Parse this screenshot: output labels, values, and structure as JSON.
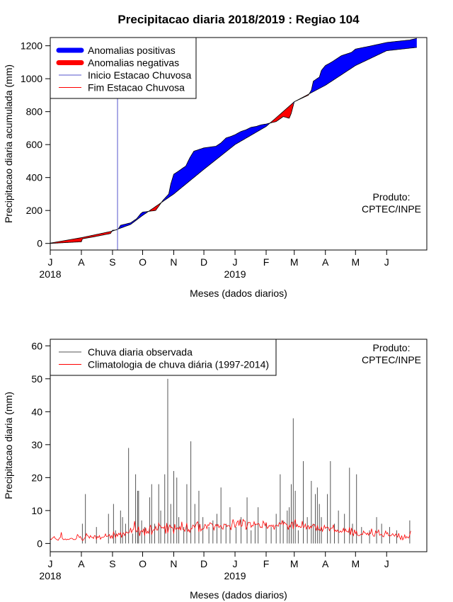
{
  "colors": {
    "positive": "#0000ff",
    "negative": "#ff0000",
    "start_line": "#5555cc",
    "end_line": "#ff0000",
    "observed": "#555555",
    "climatology": "#ff0000"
  },
  "chart_data": [
    {
      "type": "area",
      "title": "Precipitacao diaria 2018/2019 : Regiao 104",
      "xlabel": "Meses (dados diarios)",
      "ylabel": "Precipitacao diaria acumulada (mm)",
      "xlim": [
        0,
        375
      ],
      "ylim": [
        -40,
        1250
      ],
      "yticks": [
        0,
        200,
        400,
        600,
        800,
        1000,
        1200
      ],
      "months": [
        {
          "day": 0,
          "label": "J"
        },
        {
          "day": 31,
          "label": "A"
        },
        {
          "day": 62,
          "label": "S"
        },
        {
          "day": 92,
          "label": "O"
        },
        {
          "day": 123,
          "label": "N"
        },
        {
          "day": 153,
          "label": "D"
        },
        {
          "day": 184,
          "label": "J"
        },
        {
          "day": 215,
          "label": "F"
        },
        {
          "day": 243,
          "label": "M"
        },
        {
          "day": 274,
          "label": "A"
        },
        {
          "day": 304,
          "label": "M"
        },
        {
          "day": 335,
          "label": "J"
        }
      ],
      "years": [
        {
          "day": 0,
          "label": "2018"
        },
        {
          "day": 184,
          "label": "2019"
        }
      ],
      "start_season_day": 67,
      "end_season_day": 235,
      "climatology_x": [
        0,
        31,
        62,
        80,
        92,
        123,
        153,
        184,
        215,
        243,
        274,
        304,
        335,
        365
      ],
      "climatology_y": [
        2,
        35,
        75,
        115,
        170,
        300,
        450,
        600,
        710,
        860,
        960,
        1080,
        1170,
        1190
      ],
      "observed_x": [
        0,
        31,
        32,
        45,
        60,
        62,
        66,
        68,
        70,
        80,
        86,
        90,
        92,
        105,
        112,
        118,
        120,
        123,
        128,
        135,
        139,
        143,
        153,
        165,
        170,
        175,
        180,
        184,
        190,
        195,
        200,
        205,
        210,
        215,
        225,
        232,
        238,
        240,
        243,
        250,
        257,
        260,
        262,
        268,
        270,
        274,
        280,
        290,
        300,
        304,
        320,
        335,
        350,
        358,
        365
      ],
      "observed_y": [
        0,
        10,
        28,
        42,
        60,
        80,
        82,
        90,
        110,
        125,
        150,
        180,
        190,
        200,
        260,
        300,
        360,
        420,
        440,
        470,
        520,
        560,
        580,
        590,
        610,
        640,
        650,
        660,
        680,
        690,
        705,
        710,
        720,
        725,
        740,
        770,
        760,
        790,
        860,
        880,
        900,
        930,
        985,
        1010,
        1050,
        1080,
        1100,
        1140,
        1160,
        1180,
        1200,
        1220,
        1230,
        1235,
        1245
      ],
      "legend": {
        "position": "top-left",
        "items": [
          {
            "label": "Anomalias positivas",
            "color": "#0000ff",
            "style": "thick"
          },
          {
            "label": "Anomalias negativas",
            "color": "#ff0000",
            "style": "thick"
          },
          {
            "label": "Inicio Estacao Chuvosa",
            "color": "#5555cc",
            "style": "thin"
          },
          {
            "label": "Fim Estacao Chuvosa",
            "color": "#ff0000",
            "style": "thin"
          }
        ]
      },
      "annotation": [
        "Produto:",
        "CPTEC/INPE"
      ]
    },
    {
      "type": "bar",
      "title": "",
      "xlabel": "Meses (dados diarios)",
      "ylabel": "Precipitacao diaria (mm)",
      "xlim": [
        0,
        375
      ],
      "ylim": [
        -2.5,
        62
      ],
      "yticks": [
        0,
        10,
        20,
        30,
        40,
        50,
        60
      ],
      "months": [
        {
          "day": 0,
          "label": "J"
        },
        {
          "day": 31,
          "label": "A"
        },
        {
          "day": 62,
          "label": "S"
        },
        {
          "day": 92,
          "label": "O"
        },
        {
          "day": 123,
          "label": "N"
        },
        {
          "day": 153,
          "label": "D"
        },
        {
          "day": 184,
          "label": "J"
        },
        {
          "day": 215,
          "label": "F"
        },
        {
          "day": 243,
          "label": "M"
        },
        {
          "day": 274,
          "label": "A"
        },
        {
          "day": 304,
          "label": "M"
        },
        {
          "day": 335,
          "label": "J"
        }
      ],
      "years": [
        {
          "day": 0,
          "label": "2018"
        },
        {
          "day": 184,
          "label": "2019"
        }
      ],
      "rain_events": [
        [
          32,
          6
        ],
        [
          35,
          15
        ],
        [
          46,
          5
        ],
        [
          58,
          9
        ],
        [
          63,
          12
        ],
        [
          65,
          4
        ],
        [
          70,
          10
        ],
        [
          72,
          8
        ],
        [
          75,
          6
        ],
        [
          78,
          29
        ],
        [
          82,
          3
        ],
        [
          85,
          21
        ],
        [
          87,
          16
        ],
        [
          88,
          16
        ],
        [
          91,
          7
        ],
        [
          94,
          5
        ],
        [
          99,
          14
        ],
        [
          101,
          18
        ],
        [
          104,
          6
        ],
        [
          108,
          18
        ],
        [
          110,
          10
        ],
        [
          114,
          21
        ],
        [
          117,
          50
        ],
        [
          120,
          12
        ],
        [
          123,
          22
        ],
        [
          126,
          20
        ],
        [
          128,
          8
        ],
        [
          133,
          5
        ],
        [
          136,
          18
        ],
        [
          140,
          31
        ],
        [
          144,
          12
        ],
        [
          148,
          16
        ],
        [
          152,
          8
        ],
        [
          158,
          5
        ],
        [
          162,
          7
        ],
        [
          166,
          9
        ],
        [
          170,
          17
        ],
        [
          175,
          6
        ],
        [
          179,
          11
        ],
        [
          185,
          5
        ],
        [
          190,
          8
        ],
        [
          196,
          14
        ],
        [
          200,
          4
        ],
        [
          204,
          6
        ],
        [
          207,
          11
        ],
        [
          215,
          6
        ],
        [
          220,
          5
        ],
        [
          225,
          9
        ],
        [
          229,
          21
        ],
        [
          232,
          7
        ],
        [
          236,
          10
        ],
        [
          238,
          11
        ],
        [
          240,
          18
        ],
        [
          242,
          38
        ],
        [
          244,
          16
        ],
        [
          247,
          4
        ],
        [
          252,
          25
        ],
        [
          256,
          8
        ],
        [
          260,
          19
        ],
        [
          262,
          6
        ],
        [
          264,
          15
        ],
        [
          266,
          17
        ],
        [
          268,
          12
        ],
        [
          270,
          8
        ],
        [
          276,
          15
        ],
        [
          279,
          25
        ],
        [
          283,
          6
        ],
        [
          287,
          10
        ],
        [
          293,
          9
        ],
        [
          298,
          23
        ],
        [
          301,
          6
        ],
        [
          305,
          21
        ],
        [
          310,
          5
        ],
        [
          318,
          4
        ],
        [
          325,
          8
        ],
        [
          330,
          6
        ],
        [
          338,
          5
        ],
        [
          345,
          4
        ],
        [
          358,
          7
        ]
      ],
      "climatology_daily": [
        1.4,
        1.2,
        1.6,
        1.8,
        2.1,
        1.5,
        1.3,
        1.1,
        1.0,
        1.6,
        1.8,
        3.4,
        1.6,
        1.2,
        1.2,
        1.4,
        1.1,
        1.3,
        1.2,
        1.3,
        1.5,
        1.6,
        1.5,
        1.2,
        1.2,
        1.2,
        1.5,
        2.7,
        2.4,
        1.8,
        2.1,
        1.5,
        0.9,
        1.0,
        1.6,
        1.8,
        3.0,
        2.4,
        2.2,
        1.6,
        2.4,
        1.9,
        1.9,
        1.5,
        2.4,
        2.3,
        1.3,
        2.1,
        1.8,
        2.4,
        1.3,
        1.8,
        1.9,
        1.9,
        2.1,
        2.9,
        2.1,
        2.2,
        2.3,
        2.7,
        1.6,
        2.4,
        1.6,
        3.5,
        2.7,
        1.8,
        2.9,
        2.2,
        3.1,
        2.7,
        3.3,
        1.8,
        3.0,
        3.2,
        2.4,
        3.2,
        3.5,
        3.2,
        3.2,
        3.5,
        4.7,
        3.3,
        4.1,
        4.4,
        6.8,
        4.2,
        3.5,
        3.9,
        5.1,
        2.3,
        3.7,
        3.9,
        3.5,
        4.5,
        2.4,
        4.8,
        3.1,
        3.7,
        3.1,
        5.0,
        5.5,
        2.7,
        3.8,
        4.2,
        4.1,
        5.2,
        4.1,
        4.1,
        6.2,
        5.4,
        5.2,
        4.7,
        4.9,
        4.6,
        5.3,
        3.0,
        6.2,
        3.2,
        4.7,
        5.6,
        4.8,
        5.0,
        4.6,
        3.0,
        5.9,
        4.3,
        4.6,
        4.8,
        4.2,
        5.1,
        4.0,
        6.6,
        4.3,
        4.2,
        3.7,
        4.6,
        6.2,
        3.7,
        4.2,
        3.4,
        4.5,
        4.4,
        5.6,
        5.4,
        4.8,
        5.7,
        6.4,
        6.6,
        3.5,
        5.9,
        3.8,
        4.4,
        4.3,
        4.6,
        5.8,
        5.5,
        4.5,
        5.7,
        5.5,
        6.3,
        6.1,
        6.0,
        5.4,
        4.1,
        5.1,
        5.8,
        5.2,
        5.8,
        4.8,
        5.3,
        5.4,
        4.6,
        4.3,
        5.9,
        5.8,
        5.8,
        5.1,
        5.5,
        5.4,
        5.1,
        4.1,
        5.8,
        7.3,
        6.3,
        4.9,
        5.5,
        6.5,
        6.9,
        5.4,
        7.3,
        5.2,
        5.3,
        7.3,
        6.8,
        6.8,
        4.2,
        5.1,
        6.4,
        6.4,
        6.4,
        4.9,
        5.5,
        5.3,
        6.6,
        5.6,
        5.9,
        5.8,
        6.1,
        5.9,
        4.9,
        5.0,
        4.8,
        6.8,
        6.2,
        5.4,
        6.4,
        4.6,
        4.8,
        5.5,
        5.2,
        5.6,
        5.1,
        5.6,
        4.2,
        5.4,
        5.6,
        5.5,
        5.2,
        6.3,
        6.0,
        5.9,
        6.9,
        5.7,
        6.5,
        6.1,
        5.9,
        5.5,
        4.2,
        5.5,
        5.0,
        6.1,
        6.5,
        4.4,
        6.4,
        7.3,
        5.0,
        5.8,
        5.0,
        5.3,
        4.9,
        4.9,
        6.8,
        4.9,
        5.0,
        5.9,
        4.4,
        5.1,
        5.4,
        4.4,
        5.2,
        4.7,
        5.5,
        5.8,
        5.8,
        4.9,
        4.0,
        5.5,
        4.1,
        4.3,
        3.9,
        5.1,
        3.7,
        4.4,
        5.5,
        4.6,
        4.9,
        5.0,
        4.8,
        3.9,
        4.6,
        4.6,
        4.7,
        5.7,
        3.6,
        4.1,
        3.6,
        4.1,
        3.5,
        3.4,
        3.8,
        3.4,
        3.7,
        4.6,
        3.5,
        4.4,
        3.7,
        3.6,
        3.4,
        4.9,
        2.6,
        4.7,
        3.2,
        2.4,
        4.2,
        3.0,
        3.7,
        2.5,
        2.4,
        2.4,
        2.7,
        2.9,
        2.7,
        3.8,
        3.2,
        3.2,
        2.7,
        3.2,
        2.5,
        3.3,
        3.0,
        4.5,
        2.8,
        2.2,
        2.2,
        3.8,
        3.2,
        3.4,
        4.1,
        2.5,
        2.7,
        2.8,
        2.2,
        2.0,
        2.9,
        3.8,
        2.9,
        3.3,
        2.3,
        2.4,
        2.3,
        2.6,
        3.0,
        2.5,
        2.2,
        2.9,
        2.5,
        1.9,
        3.1,
        1.9,
        1.2,
        2.4,
        1.1,
        1.6,
        2.6,
        1.6,
        2.1,
        1.8,
        1.7,
        2.6,
        3.8
      ],
      "legend": {
        "position": "top-left",
        "items": [
          {
            "label": "Chuva diaria observada",
            "color": "#555555",
            "style": "thin"
          },
          {
            "label": "Climatologia de chuva diária (1997-2014)",
            "color": "#ff0000",
            "style": "thin"
          }
        ]
      },
      "annotation": [
        "Produto:",
        "CPTEC/INPE"
      ]
    }
  ]
}
